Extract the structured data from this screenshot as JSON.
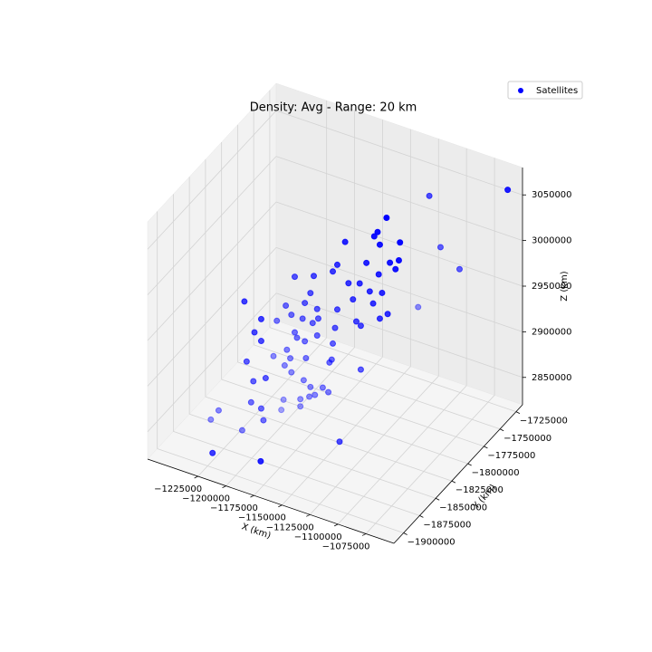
{
  "chart_data": {
    "type": "scatter3d",
    "title": "Density: Avg - Range: 20 km",
    "xlabel": "X (km)",
    "ylabel": "Y (km)",
    "zlabel": "Z (km)",
    "xlim": [
      -1270000,
      -1050000
    ],
    "ylim": [
      -1915000,
      -1715000
    ],
    "zlim": [
      2820000,
      3080000
    ],
    "xticks": [
      {
        "value": -1225000,
        "label": "−1225000"
      },
      {
        "value": -1200000,
        "label": "−1200000"
      },
      {
        "value": -1175000,
        "label": "−1175000"
      },
      {
        "value": -1150000,
        "label": "−1150000"
      },
      {
        "value": -1125000,
        "label": "−1125000"
      },
      {
        "value": -1100000,
        "label": "−1100000"
      },
      {
        "value": -1075000,
        "label": "−1075000"
      }
    ],
    "yticks": [
      {
        "value": -1900000,
        "label": "−1900000"
      },
      {
        "value": -1875000,
        "label": "−1875000"
      },
      {
        "value": -1850000,
        "label": "−1850000"
      },
      {
        "value": -1825000,
        "label": "−1825000"
      },
      {
        "value": -1800000,
        "label": "−1800000"
      },
      {
        "value": -1775000,
        "label": "−1775000"
      },
      {
        "value": -1750000,
        "label": "−1750000"
      },
      {
        "value": -1725000,
        "label": "−1725000"
      }
    ],
    "zticks": [
      2850000,
      2900000,
      2950000,
      3000000,
      3050000
    ],
    "grid": true,
    "legend": "upper right",
    "series": [
      {
        "name": "Satellites",
        "color": "#0000ff",
        "x": [
          -1046000,
          -1116000,
          -1106000,
          -1089000,
          -1126000,
          -1114000,
          -1122000,
          -1125000,
          -1120000,
          -1102000,
          -1103000,
          -1111000,
          -1106000,
          -1121000,
          -1151000,
          -1158000,
          -1132000,
          -1162000,
          -1148000,
          -1138000,
          -1118000,
          -1129000,
          -1126000,
          -1144000,
          -1113000,
          -1120000,
          -1141000,
          -1137000,
          -1158000,
          -1179000,
          -1196000,
          -1182000,
          -1187000,
          -1176000,
          -1204000,
          -1199000,
          -1212000,
          -1175000,
          -1180000,
          -1189000,
          -1176000,
          -1196000,
          -1160000,
          -1162000,
          -1187000,
          -1194000,
          -1203000,
          -1215000,
          -1200000,
          -1186000,
          -1205000,
          -1163000,
          -1165000,
          -1137000,
          -1199000,
          -1188000,
          -1171000,
          -1182000,
          -1166000,
          -1178000,
          -1183000,
          -1191000,
          -1206000,
          -1191000,
          -1208000,
          -1133000,
          -1218000,
          -1203000,
          -1209000,
          -1203000,
          -1216000,
          -1199000,
          -1210000,
          -1212000,
          -1203000,
          -1241000,
          -1201000,
          -1248000,
          -1220000,
          -1212000,
          -1169000
        ],
        "y": [
          -1745000,
          -1745000,
          -1745000,
          -1745000,
          -1745000,
          -1815000,
          -1815000,
          -1815000,
          -1815000,
          -1815000,
          -1815000,
          -1815000,
          -1815000,
          -1815000,
          -1815000,
          -1815000,
          -1815000,
          -1815000,
          -1815000,
          -1815000,
          -1815000,
          -1815000,
          -1815000,
          -1815000,
          -1815000,
          -1815000,
          -1815000,
          -1815000,
          -1815000,
          -1815000,
          -1815000,
          -1815000,
          -1815000,
          -1815000,
          -1815000,
          -1815000,
          -1815000,
          -1815000,
          -1815000,
          -1815000,
          -1815000,
          -1815000,
          -1815000,
          -1815000,
          -1815000,
          -1815000,
          -1815000,
          -1815000,
          -1815000,
          -1815000,
          -1815000,
          -1815000,
          -1815000,
          -1815000,
          -1815000,
          -1815000,
          -1815000,
          -1815000,
          -1815000,
          -1815000,
          -1815000,
          -1815000,
          -1815000,
          -1815000,
          -1815000,
          -1855000,
          -1855000,
          -1855000,
          -1855000,
          -1855000,
          -1855000,
          -1855000,
          -1855000,
          -1855000,
          -1855000,
          -1855000,
          -1855000,
          -1855000,
          -1855000,
          -1915000,
          -1915000
        ],
        "z": [
          3080000,
          3044000,
          2992000,
          2975000,
          2918000,
          3074000,
          3055000,
          3049000,
          3042000,
          3052000,
          3032000,
          3026000,
          3021000,
          3009000,
          3032000,
          3004000,
          3017000,
          2995000,
          2988000,
          2992000,
          2990000,
          2987000,
          2975000,
          2972000,
          2969000,
          2961000,
          2949000,
          2946000,
          2955000,
          2983000,
          2975000,
          2963000,
          2950000,
          2948000,
          2940000,
          2932000,
          2920000,
          2938000,
          2931000,
          2932000,
          2919000,
          2914000,
          2934000,
          2916000,
          2908000,
          2909000,
          2892000,
          2880000,
          2884000,
          2890000,
          2874000,
          2898000,
          2894000,
          2898000,
          2869000,
          2865000,
          2864000,
          2860000,
          2861000,
          2853000,
          2849000,
          2843000,
          2836000,
          2835000,
          2824000,
          2851000,
          2969000,
          2956000,
          2939000,
          2932000,
          2904000,
          2893000,
          2885000,
          2861000,
          2858000,
          2840000,
          2846000,
          2827000,
          2827000,
          2851000,
          2860000
        ]
      }
    ]
  }
}
